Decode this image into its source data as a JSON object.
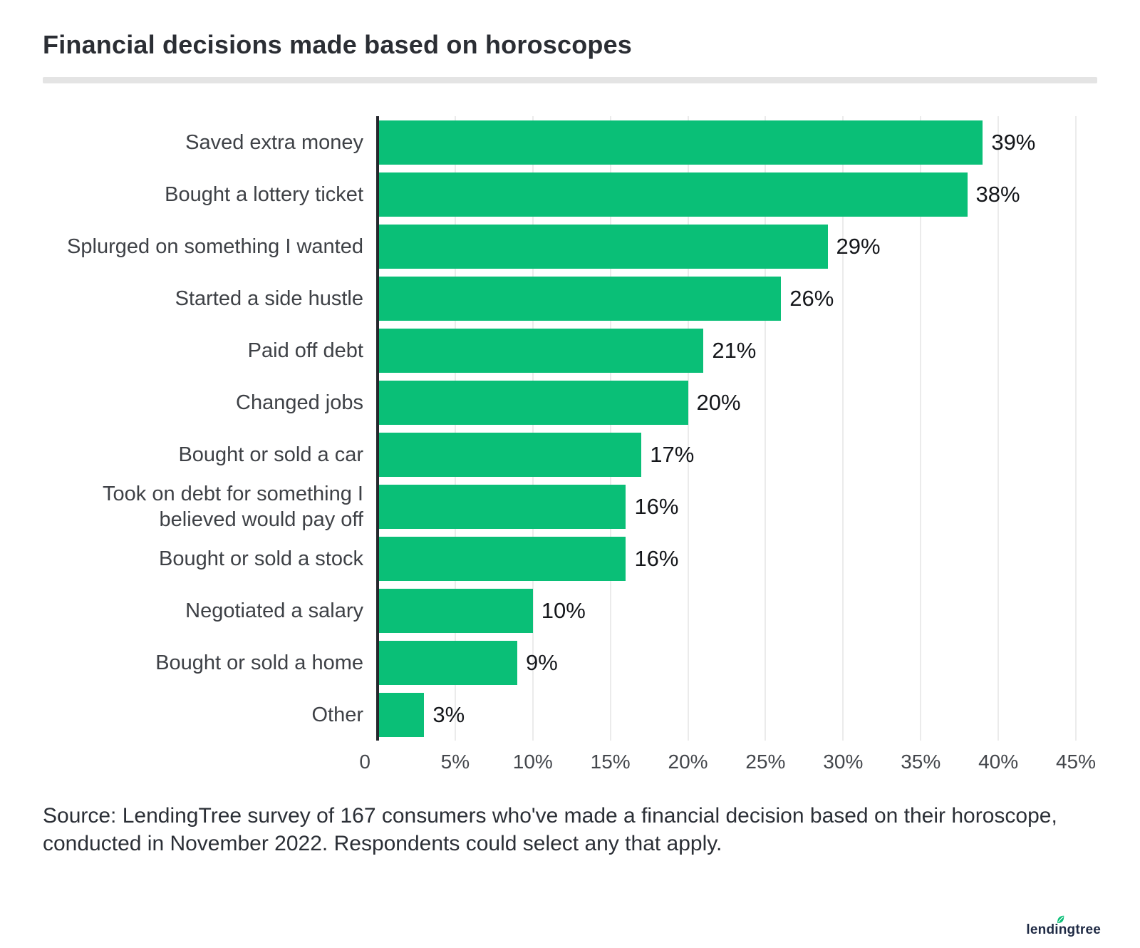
{
  "title": "Financial decisions made based on horoscopes",
  "chart_data": {
    "type": "bar",
    "orientation": "horizontal",
    "title": "Financial decisions made based on horoscopes",
    "categories": [
      "Saved extra money",
      "Bought a lottery ticket",
      "Splurged on something I wanted",
      "Started a side hustle",
      "Paid off debt",
      "Changed jobs",
      "Bought or sold a car",
      "Took on debt for something I believed would pay off",
      "Bought or sold a stock",
      "Negotiated a salary",
      "Bought or sold a home",
      "Other"
    ],
    "values": [
      39,
      38,
      29,
      26,
      21,
      20,
      17,
      16,
      16,
      10,
      9,
      3
    ],
    "value_labels": [
      "39%",
      "38%",
      "29%",
      "26%",
      "21%",
      "20%",
      "17%",
      "16%",
      "16%",
      "10%",
      "9%",
      "3%"
    ],
    "xlim": [
      0,
      45
    ],
    "x_tick_step": 5,
    "x_tick_labels": [
      "0",
      "5%",
      "10%",
      "15%",
      "20%",
      "25%",
      "30%",
      "35%",
      "40%",
      "45%"
    ],
    "grid": true,
    "bar_color": "#0abf77",
    "gridline_color": "#ebebeb",
    "axis_line_color": "#25282d"
  },
  "source": "Source: LendingTree survey of 167 consumers who've made a financial decision based on their horoscope, conducted in November 2022. Respondents could select any that apply.",
  "footer": {
    "logo_text": "lendingtree",
    "logo_color": "#1f2a44",
    "leaf_color": "#0abf77"
  }
}
